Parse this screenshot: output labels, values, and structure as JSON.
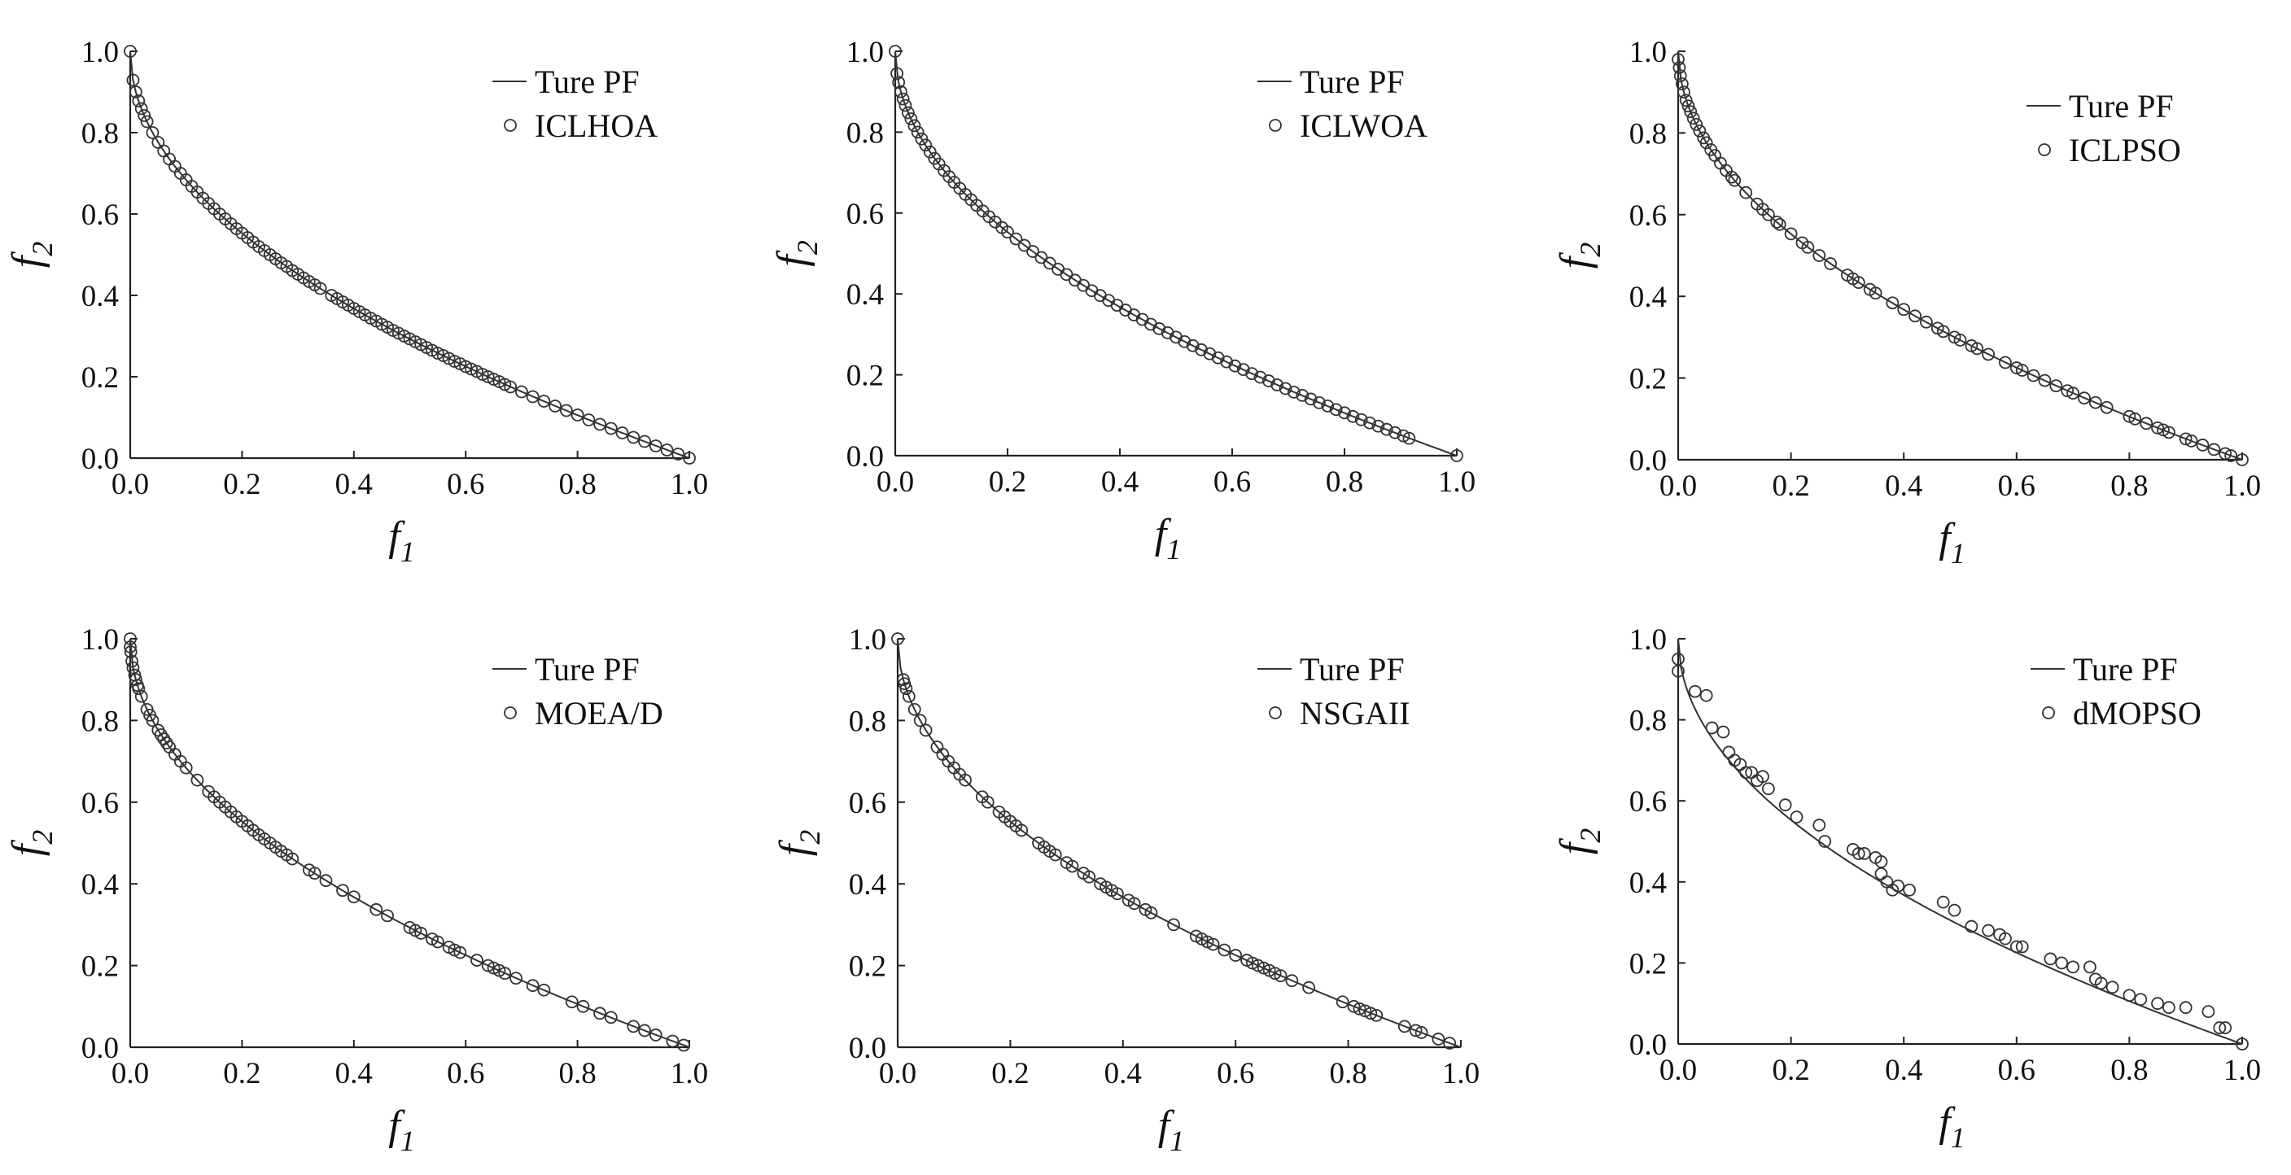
{
  "figure": {
    "x_tick_labels": [
      "0.0",
      "0.2",
      "0.4",
      "0.6",
      "0.8",
      "1.0"
    ],
    "y_tick_labels": [
      "0.0",
      "0.2",
      "0.4",
      "0.6",
      "0.8",
      "1.0"
    ]
  },
  "chart_data": [
    {
      "type": "scatter",
      "xlabel": "f",
      "xlabel_sub": "1",
      "ylabel": "f",
      "ylabel_sub": "2",
      "xlim": [
        0,
        1
      ],
      "ylim": [
        0,
        1
      ],
      "grid": false,
      "legend_position": "top-right",
      "reference_line": {
        "name": "Ture PF",
        "function": "1 - sqrt(x)"
      },
      "series": [
        {
          "name": "ICLHOA",
          "x": [
            0.0,
            0.005,
            0.01,
            0.015,
            0.02,
            0.025,
            0.03,
            0.04,
            0.05,
            0.06,
            0.07,
            0.08,
            0.09,
            0.1,
            0.11,
            0.12,
            0.13,
            0.14,
            0.15,
            0.16,
            0.17,
            0.18,
            0.19,
            0.2,
            0.21,
            0.22,
            0.23,
            0.24,
            0.25,
            0.26,
            0.27,
            0.28,
            0.29,
            0.3,
            0.31,
            0.32,
            0.33,
            0.34,
            0.36,
            0.37,
            0.38,
            0.39,
            0.4,
            0.41,
            0.42,
            0.43,
            0.44,
            0.45,
            0.46,
            0.47,
            0.48,
            0.49,
            0.5,
            0.51,
            0.52,
            0.53,
            0.54,
            0.55,
            0.56,
            0.57,
            0.58,
            0.59,
            0.6,
            0.61,
            0.62,
            0.63,
            0.64,
            0.65,
            0.66,
            0.67,
            0.68,
            0.7,
            0.72,
            0.74,
            0.76,
            0.78,
            0.8,
            0.82,
            0.84,
            0.86,
            0.88,
            0.9,
            0.92,
            0.94,
            0.96,
            0.98,
            1.0
          ],
          "y": [
            1.0,
            0.929,
            0.9,
            0.878,
            0.859,
            0.842,
            0.827,
            0.8,
            0.776,
            0.755,
            0.735,
            0.717,
            0.7,
            0.684,
            0.668,
            0.654,
            0.639,
            0.626,
            0.613,
            0.6,
            0.588,
            0.576,
            0.564,
            0.553,
            0.542,
            0.531,
            0.52,
            0.51,
            0.5,
            0.49,
            0.48,
            0.471,
            0.461,
            0.452,
            0.443,
            0.434,
            0.426,
            0.417,
            0.4,
            0.392,
            0.384,
            0.376,
            0.368,
            0.36,
            0.352,
            0.344,
            0.337,
            0.329,
            0.322,
            0.314,
            0.307,
            0.3,
            0.293,
            0.286,
            0.279,
            0.272,
            0.265,
            0.258,
            0.252,
            0.245,
            0.238,
            0.232,
            0.225,
            0.219,
            0.213,
            0.206,
            0.2,
            0.194,
            0.188,
            0.181,
            0.175,
            0.163,
            0.151,
            0.14,
            0.128,
            0.117,
            0.106,
            0.094,
            0.083,
            0.073,
            0.062,
            0.051,
            0.041,
            0.03,
            0.02,
            0.01,
            0.0
          ]
        }
      ]
    },
    {
      "type": "scatter",
      "xlabel": "f",
      "xlabel_sub": "1",
      "ylabel": "f",
      "ylabel_sub": "2",
      "xlim": [
        0,
        1
      ],
      "ylim": [
        0,
        1
      ],
      "grid": false,
      "legend_position": "top-right",
      "reference_line": {
        "name": "Ture PF",
        "function": "1 - sqrt(x)"
      },
      "series": [
        {
          "name": "ICLWOA",
          "x": [
            0.0,
            0.003,
            0.006,
            0.01,
            0.014,
            0.018,
            0.023,
            0.028,
            0.034,
            0.04,
            0.047,
            0.054,
            0.062,
            0.07,
            0.078,
            0.087,
            0.096,
            0.105,
            0.115,
            0.125,
            0.135,
            0.145,
            0.156,
            0.167,
            0.178,
            0.19,
            0.2,
            0.215,
            0.23,
            0.245,
            0.26,
            0.275,
            0.29,
            0.305,
            0.32,
            0.335,
            0.35,
            0.365,
            0.38,
            0.395,
            0.41,
            0.425,
            0.44,
            0.455,
            0.47,
            0.485,
            0.5,
            0.515,
            0.53,
            0.545,
            0.56,
            0.575,
            0.59,
            0.605,
            0.62,
            0.635,
            0.65,
            0.665,
            0.68,
            0.695,
            0.71,
            0.725,
            0.74,
            0.755,
            0.77,
            0.785,
            0.8,
            0.815,
            0.83,
            0.845,
            0.86,
            0.875,
            0.89,
            0.905,
            0.915,
            1.0
          ],
          "y": [
            1.0,
            0.945,
            0.923,
            0.9,
            0.882,
            0.866,
            0.848,
            0.833,
            0.816,
            0.8,
            0.783,
            0.768,
            0.751,
            0.735,
            0.721,
            0.705,
            0.69,
            0.676,
            0.661,
            0.646,
            0.633,
            0.619,
            0.605,
            0.591,
            0.578,
            0.564,
            0.553,
            0.536,
            0.52,
            0.505,
            0.49,
            0.476,
            0.461,
            0.448,
            0.434,
            0.421,
            0.408,
            0.396,
            0.384,
            0.372,
            0.36,
            0.348,
            0.337,
            0.325,
            0.314,
            0.304,
            0.293,
            0.282,
            0.272,
            0.262,
            0.252,
            0.242,
            0.232,
            0.222,
            0.213,
            0.203,
            0.194,
            0.185,
            0.175,
            0.166,
            0.157,
            0.149,
            0.14,
            0.131,
            0.123,
            0.114,
            0.106,
            0.097,
            0.089,
            0.081,
            0.073,
            0.065,
            0.057,
            0.049,
            0.043,
            0.0
          ]
        }
      ]
    },
    {
      "type": "scatter",
      "xlabel": "f",
      "xlabel_sub": "1",
      "ylabel": "f",
      "ylabel_sub": "2",
      "xlim": [
        0,
        1
      ],
      "ylim": [
        0,
        1
      ],
      "grid": false,
      "legend_position": "top-right",
      "reference_line": {
        "name": "Ture PF",
        "function": "1 - sqrt(x)"
      },
      "series": [
        {
          "name": "ICLPSO",
          "x": [
            0.0,
            0.002,
            0.004,
            0.007,
            0.01,
            0.014,
            0.018,
            0.022,
            0.027,
            0.032,
            0.038,
            0.045,
            0.05,
            0.058,
            0.065,
            0.075,
            0.085,
            0.095,
            0.1,
            0.12,
            0.14,
            0.15,
            0.16,
            0.175,
            0.18,
            0.2,
            0.22,
            0.23,
            0.25,
            0.27,
            0.3,
            0.31,
            0.32,
            0.34,
            0.35,
            0.38,
            0.4,
            0.42,
            0.44,
            0.46,
            0.47,
            0.49,
            0.5,
            0.52,
            0.53,
            0.55,
            0.58,
            0.6,
            0.61,
            0.63,
            0.65,
            0.67,
            0.69,
            0.7,
            0.72,
            0.74,
            0.76,
            0.8,
            0.81,
            0.83,
            0.85,
            0.86,
            0.87,
            0.9,
            0.91,
            0.93,
            0.95,
            0.97,
            0.98,
            1.0
          ],
          "y": [
            0.98,
            0.96,
            0.94,
            0.92,
            0.9,
            0.88,
            0.866,
            0.852,
            0.836,
            0.821,
            0.805,
            0.788,
            0.776,
            0.759,
            0.745,
            0.726,
            0.708,
            0.692,
            0.684,
            0.654,
            0.626,
            0.613,
            0.6,
            0.582,
            0.576,
            0.553,
            0.531,
            0.52,
            0.5,
            0.48,
            0.452,
            0.443,
            0.434,
            0.417,
            0.408,
            0.384,
            0.368,
            0.352,
            0.337,
            0.322,
            0.314,
            0.3,
            0.293,
            0.279,
            0.272,
            0.258,
            0.238,
            0.225,
            0.219,
            0.206,
            0.194,
            0.181,
            0.169,
            0.163,
            0.151,
            0.14,
            0.128,
            0.106,
            0.1,
            0.089,
            0.078,
            0.073,
            0.067,
            0.051,
            0.046,
            0.036,
            0.025,
            0.015,
            0.01,
            0.0
          ]
        }
      ]
    },
    {
      "type": "scatter",
      "xlabel": "f",
      "xlabel_sub": "1",
      "ylabel": "f",
      "ylabel_sub": "2",
      "xlim": [
        0,
        1
      ],
      "ylim": [
        0,
        1
      ],
      "grid": false,
      "legend_position": "top-right",
      "reference_line": {
        "name": "Ture PF",
        "function": "1 - sqrt(x)"
      },
      "series": [
        {
          "name": "MOEA/D",
          "x": [
            0.0,
            0.0,
            0.001,
            0.003,
            0.005,
            0.008,
            0.01,
            0.013,
            0.015,
            0.02,
            0.03,
            0.035,
            0.04,
            0.05,
            0.055,
            0.06,
            0.065,
            0.07,
            0.08,
            0.09,
            0.1,
            0.12,
            0.14,
            0.15,
            0.16,
            0.17,
            0.18,
            0.19,
            0.2,
            0.21,
            0.22,
            0.23,
            0.24,
            0.25,
            0.26,
            0.27,
            0.28,
            0.29,
            0.32,
            0.33,
            0.35,
            0.38,
            0.4,
            0.44,
            0.46,
            0.5,
            0.51,
            0.52,
            0.54,
            0.55,
            0.57,
            0.58,
            0.59,
            0.62,
            0.64,
            0.65,
            0.66,
            0.67,
            0.69,
            0.72,
            0.74,
            0.79,
            0.81,
            0.84,
            0.86,
            0.9,
            0.92,
            0.94,
            0.97,
            0.99
          ],
          "y": [
            1.0,
            0.98,
            0.968,
            0.945,
            0.929,
            0.911,
            0.9,
            0.886,
            0.878,
            0.859,
            0.827,
            0.813,
            0.8,
            0.776,
            0.765,
            0.755,
            0.745,
            0.735,
            0.717,
            0.7,
            0.684,
            0.654,
            0.626,
            0.613,
            0.6,
            0.588,
            0.576,
            0.564,
            0.553,
            0.542,
            0.531,
            0.52,
            0.51,
            0.5,
            0.49,
            0.48,
            0.471,
            0.461,
            0.434,
            0.426,
            0.408,
            0.384,
            0.368,
            0.337,
            0.322,
            0.293,
            0.286,
            0.279,
            0.265,
            0.258,
            0.245,
            0.238,
            0.232,
            0.213,
            0.2,
            0.194,
            0.188,
            0.181,
            0.169,
            0.151,
            0.14,
            0.111,
            0.1,
            0.083,
            0.073,
            0.051,
            0.041,
            0.03,
            0.015,
            0.005
          ]
        }
      ]
    },
    {
      "type": "scatter",
      "xlabel": "f",
      "xlabel_sub": "1",
      "ylabel": "f",
      "ylabel_sub": "2",
      "xlim": [
        0,
        1
      ],
      "ylim": [
        0,
        1
      ],
      "grid": false,
      "legend_position": "top-right",
      "reference_line": {
        "name": "Ture PF",
        "function": "1 - sqrt(x)"
      },
      "series": [
        {
          "name": "NSGAII",
          "x": [
            0.0,
            0.01,
            0.012,
            0.015,
            0.02,
            0.03,
            0.04,
            0.05,
            0.07,
            0.08,
            0.09,
            0.1,
            0.11,
            0.12,
            0.15,
            0.16,
            0.18,
            0.19,
            0.2,
            0.21,
            0.22,
            0.25,
            0.26,
            0.27,
            0.28,
            0.3,
            0.31,
            0.33,
            0.34,
            0.36,
            0.37,
            0.38,
            0.39,
            0.41,
            0.42,
            0.44,
            0.45,
            0.49,
            0.53,
            0.54,
            0.55,
            0.56,
            0.58,
            0.6,
            0.62,
            0.63,
            0.64,
            0.65,
            0.66,
            0.67,
            0.68,
            0.7,
            0.73,
            0.79,
            0.81,
            0.82,
            0.83,
            0.84,
            0.85,
            0.9,
            0.92,
            0.93,
            0.96,
            0.98
          ],
          "y": [
            1.0,
            0.9,
            0.89,
            0.878,
            0.859,
            0.827,
            0.8,
            0.776,
            0.735,
            0.717,
            0.7,
            0.684,
            0.668,
            0.654,
            0.613,
            0.6,
            0.576,
            0.564,
            0.553,
            0.542,
            0.531,
            0.5,
            0.49,
            0.48,
            0.471,
            0.452,
            0.443,
            0.426,
            0.417,
            0.4,
            0.392,
            0.384,
            0.376,
            0.36,
            0.352,
            0.337,
            0.329,
            0.3,
            0.272,
            0.265,
            0.258,
            0.252,
            0.238,
            0.225,
            0.213,
            0.206,
            0.2,
            0.194,
            0.188,
            0.181,
            0.175,
            0.163,
            0.146,
            0.111,
            0.1,
            0.094,
            0.089,
            0.083,
            0.078,
            0.051,
            0.041,
            0.036,
            0.02,
            0.01
          ]
        }
      ]
    },
    {
      "type": "scatter",
      "xlabel": "f",
      "xlabel_sub": "1",
      "ylabel": "f",
      "ylabel_sub": "2",
      "xlim": [
        0,
        1
      ],
      "ylim": [
        0,
        1
      ],
      "grid": false,
      "legend_position": "top-right",
      "reference_line": {
        "name": "Ture PF",
        "function": "1 - sqrt(x)"
      },
      "series": [
        {
          "name": "dMOPSO",
          "x": [
            0.0,
            0.0,
            0.03,
            0.05,
            0.06,
            0.08,
            0.09,
            0.1,
            0.11,
            0.12,
            0.13,
            0.14,
            0.15,
            0.16,
            0.19,
            0.21,
            0.25,
            0.26,
            0.31,
            0.32,
            0.33,
            0.35,
            0.36,
            0.36,
            0.37,
            0.38,
            0.39,
            0.41,
            0.47,
            0.49,
            0.52,
            0.55,
            0.57,
            0.58,
            0.6,
            0.61,
            0.66,
            0.68,
            0.7,
            0.73,
            0.74,
            0.75,
            0.77,
            0.8,
            0.82,
            0.85,
            0.87,
            0.9,
            0.94,
            0.96,
            0.97,
            1.0
          ],
          "y": [
            0.95,
            0.92,
            0.87,
            0.86,
            0.78,
            0.77,
            0.72,
            0.7,
            0.69,
            0.67,
            0.67,
            0.65,
            0.66,
            0.63,
            0.59,
            0.56,
            0.54,
            0.5,
            0.48,
            0.47,
            0.47,
            0.46,
            0.45,
            0.42,
            0.4,
            0.38,
            0.39,
            0.38,
            0.35,
            0.33,
            0.29,
            0.28,
            0.27,
            0.26,
            0.24,
            0.24,
            0.21,
            0.2,
            0.19,
            0.19,
            0.16,
            0.15,
            0.14,
            0.12,
            0.11,
            0.1,
            0.09,
            0.09,
            0.08,
            0.04,
            0.04,
            0.0
          ]
        }
      ]
    }
  ]
}
